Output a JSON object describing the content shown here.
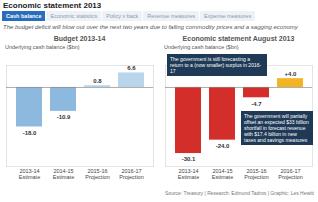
{
  "header": {
    "title": "Economic statement 2013",
    "tabs": [
      "Cash balance",
      "Economic statistics",
      "Policy v back",
      "Revenue measures",
      "Expense measures"
    ],
    "active_tab": "Cash balance",
    "subtitle": "The budget deficit will blow out over the next two years due to falling commodity prices and a sagging economy"
  },
  "source": "Source: Treasury | Research: Edmund Tadros | Graphic: Les Hewitt",
  "chart_data": [
    {
      "type": "bar",
      "title": "Budget 2013-14",
      "y_label": "Underlying cash balance ($bn)",
      "categories": [
        "2013-14\nEstimate",
        "2014-15\nEstimate",
        "2015-16\nProjection",
        "2016-17\nProjection"
      ],
      "values": [
        -18.0,
        -10.9,
        0.8,
        6.6
      ],
      "value_labels": [
        "-18.0",
        "-10.9",
        "0.8",
        "6.6"
      ],
      "colors": [
        "#8db9de",
        "#8db9de",
        "#b9d5ec",
        "#b9d5ec"
      ],
      "ylim": [
        -36,
        10
      ],
      "yticks": [
        0
      ],
      "grid": false,
      "data_labels": true,
      "tick_labels": "x"
    },
    {
      "type": "bar",
      "title": "Economic statement August 2013",
      "y_label": "Underlying cash balance ($bn)",
      "categories": [
        "2013-14\nEstimate",
        "2014-15\nEstimate",
        "2015-16\nProjection",
        "2016-17\nProjection"
      ],
      "values": [
        -30.1,
        -24.0,
        -4.7,
        4.0
      ],
      "value_labels": [
        "-30.1",
        "-24.0",
        "-4.7",
        "+4.0"
      ],
      "colors": [
        "#d42e2a",
        "#d42e2a",
        "#d42e2a",
        "#f2b324"
      ],
      "ylim": [
        -36,
        10
      ],
      "yticks": [
        0
      ],
      "grid": false,
      "data_labels": true,
      "tick_labels": "x",
      "annotations": [
        "The government is still forecasting a return to a (now smaller) surplus in 2016-17",
        "The government will partially offset an expected $33 billion shortfall in forecast revenue with $17.4 billion in new taxes and savings measures"
      ]
    }
  ]
}
